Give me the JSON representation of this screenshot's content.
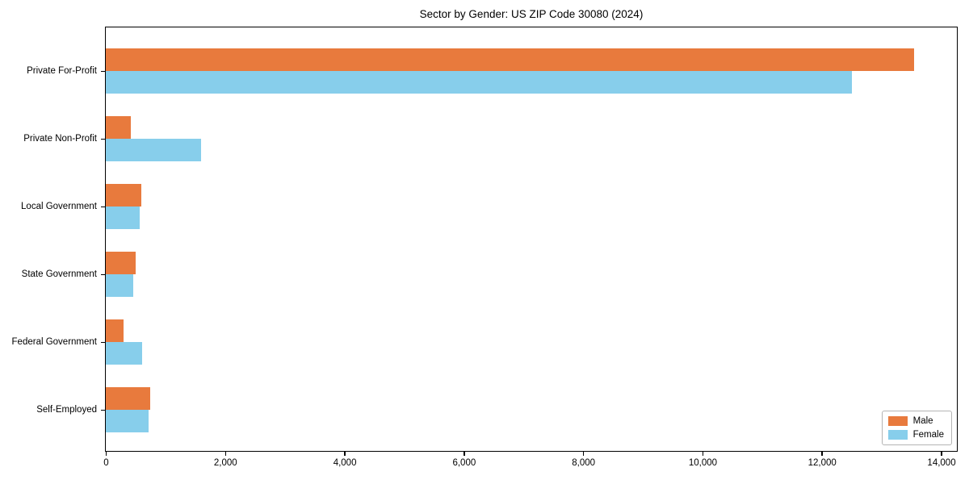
{
  "chart_data": {
    "type": "bar",
    "orientation": "horizontal",
    "title": "Sector by Gender: US ZIP Code 30080 (2024)",
    "categories": [
      "Private For-Profit",
      "Private Non-Profit",
      "Local Government",
      "State Government",
      "Federal Government",
      "Self-Employed"
    ],
    "series": [
      {
        "name": "Male",
        "color": "#e87a3d",
        "values": [
          13550,
          420,
          590,
          500,
          300,
          745
        ]
      },
      {
        "name": "Female",
        "color": "#87ceeb",
        "values": [
          12500,
          1600,
          570,
          465,
          615,
          720
        ]
      }
    ],
    "xlim": [
      0,
      14250
    ],
    "x_ticks": [
      0,
      2000,
      4000,
      6000,
      8000,
      10000,
      12000,
      14000
    ],
    "x_tick_labels": [
      "0",
      "2,000",
      "4,000",
      "6,000",
      "8,000",
      "10,000",
      "12,000",
      "14,000"
    ],
    "legend_position": "lower right",
    "grid": false
  }
}
